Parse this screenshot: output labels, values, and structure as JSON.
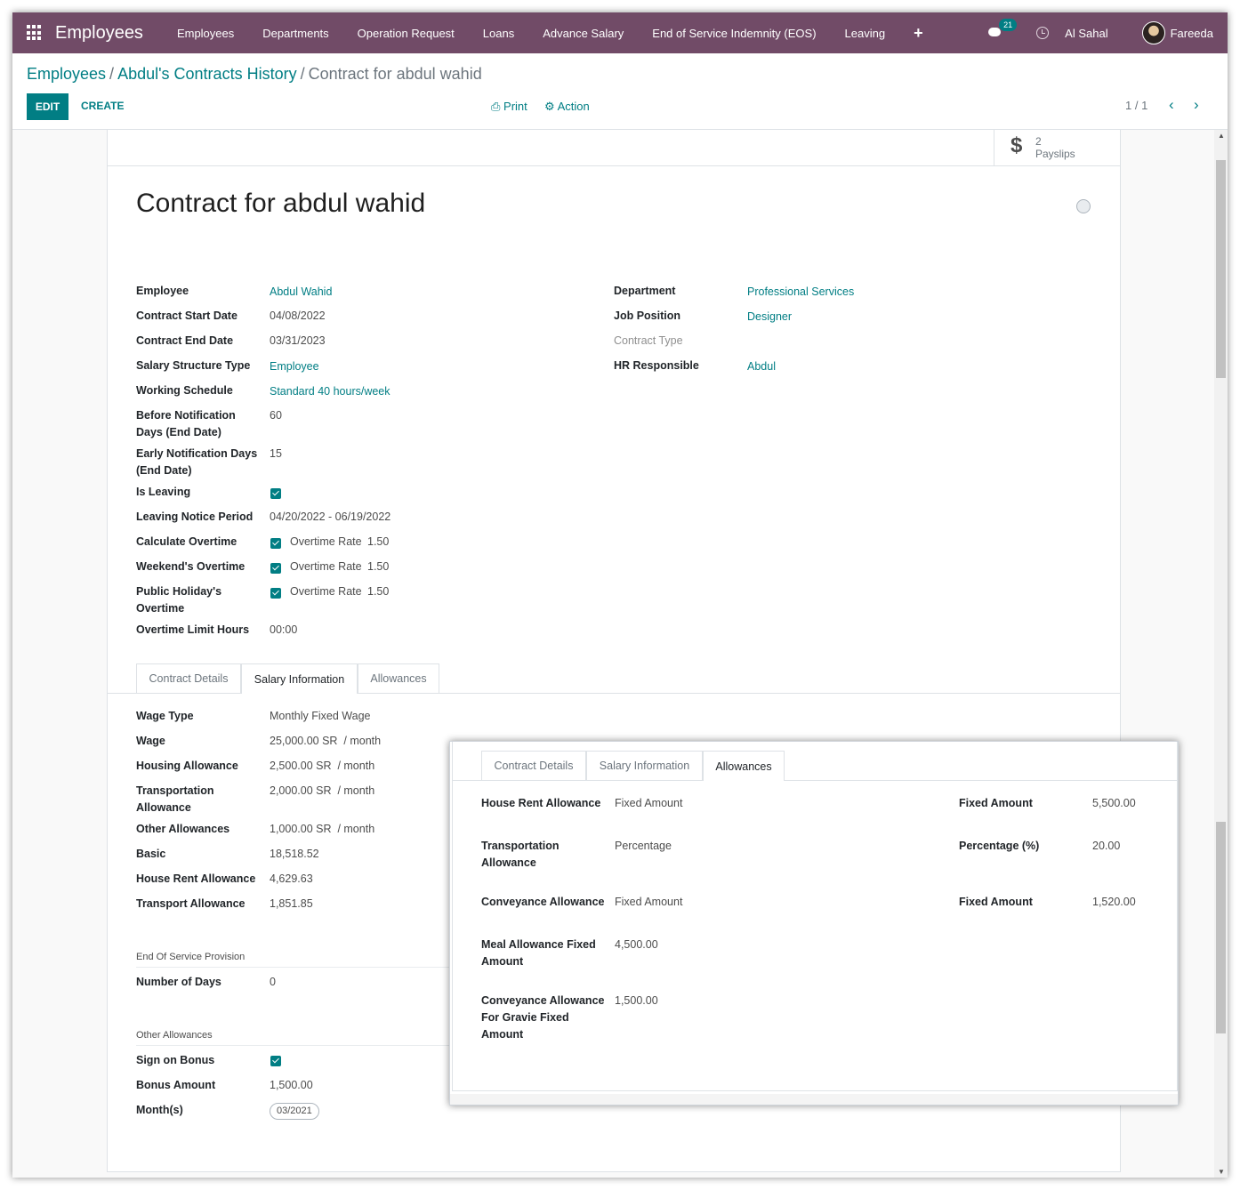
{
  "navbar": {
    "app_name": "Employees",
    "menu": [
      "Employees",
      "Departments",
      "Operation Request",
      "Loans",
      "Advance Salary",
      "End of Service Indemnity (EOS)",
      "Leaving"
    ],
    "plus": "+",
    "messages_count": "21",
    "company": "Al Sahal",
    "user": "Fareeda"
  },
  "breadcrumb": {
    "items": [
      "Employees",
      "Abdul's Contracts History"
    ],
    "current": "Contract for abdul wahid"
  },
  "toolbar": {
    "edit_label": "EDIT",
    "create_label": "CREATE",
    "print_label": "Print",
    "action_label": "Action",
    "pager": "1 / 1"
  },
  "smart_button": {
    "value": "2",
    "label": "Payslips"
  },
  "title": "Contract for abdul wahid",
  "left_fields": [
    {
      "label": "Employee",
      "value": "Abdul Wahid"
    },
    {
      "label": "Contract Start Date",
      "value": "04/08/2022"
    },
    {
      "label": "Contract End Date",
      "value": "03/31/2023"
    },
    {
      "label": "Salary Structure Type",
      "value": "Employee"
    },
    {
      "label": "Working Schedule",
      "value": "Standard 40 hours/week"
    },
    {
      "label": "Before Notification Days (End Date)",
      "value": "60"
    },
    {
      "label": "Early Notification Days (End Date)",
      "value": "15"
    },
    {
      "label": "Is Leaving",
      "value": ""
    },
    {
      "label": "Leaving Notice Period",
      "value": "04/20/2022 - 06/19/2022"
    },
    {
      "label": "Calculate Overtime",
      "value": "Overtime Rate",
      "rate": "1.50"
    },
    {
      "label": "Weekend's Overtime",
      "value": "Overtime Rate",
      "rate": "1.50"
    },
    {
      "label": "Public Holiday's Overtime",
      "value": "Overtime Rate",
      "rate": "1.50"
    },
    {
      "label": "Overtime Limit Hours",
      "value": "00:00"
    }
  ],
  "right_fields": [
    {
      "label": "Department",
      "value": "Professional Services"
    },
    {
      "label": "Job Position",
      "value": "Designer"
    },
    {
      "label": "Contract Type",
      "value": ""
    },
    {
      "label": "HR Responsible",
      "value": "Abdul"
    }
  ],
  "tabs": [
    "Contract Details",
    "Salary Information",
    "Allowances"
  ],
  "salary": [
    {
      "label": "Wage Type",
      "value": "Monthly Fixed Wage"
    },
    {
      "label": "Wage",
      "value": "25,000.00 SR",
      "suffix": "/ month"
    },
    {
      "label": "Housing Allowance",
      "value": "2,500.00 SR",
      "suffix": "/ month"
    },
    {
      "label": "Transportation Allowance",
      "value": "2,000.00 SR",
      "suffix": "/ month"
    },
    {
      "label": "Other Allowances",
      "value": "1,000.00 SR",
      "suffix": "/ month"
    },
    {
      "label": "Basic",
      "value": "18,518.52"
    },
    {
      "label": "House Rent Allowance",
      "value": "4,629.63"
    },
    {
      "label": "Transport Allowance",
      "value": "1,851.85"
    }
  ],
  "eos": {
    "section": "End Of Service Provision",
    "label": "Number of Days",
    "value": "0"
  },
  "other": {
    "section": "Other Allowances",
    "sign_label": "Sign on Bonus",
    "bonus_label": "Bonus Amount",
    "bonus_value": "1,500.00",
    "months_label": "Month(s)",
    "month_tag": "03/2021"
  },
  "allowances": [
    {
      "label": "House Rent Allowance",
      "type": "Fixed Amount",
      "rlabel": "Fixed Amount",
      "rvalue": "5,500.00"
    },
    {
      "label": "Transportation Allowance",
      "type": "Percentage",
      "rlabel": "Percentage (%)",
      "rvalue": "20.00"
    },
    {
      "label": "Conveyance Allowance",
      "type": "Fixed Amount",
      "rlabel": "Fixed Amount",
      "rvalue": "1,520.00"
    },
    {
      "label": "Meal Allowance Fixed Amount",
      "type": "4,500.00"
    },
    {
      "label": "Conveyance Allowance For Gravie Fixed Amount",
      "type": "1,500.00"
    }
  ],
  "colors": {
    "navbar": "#714b67",
    "accent": "#017e84"
  }
}
